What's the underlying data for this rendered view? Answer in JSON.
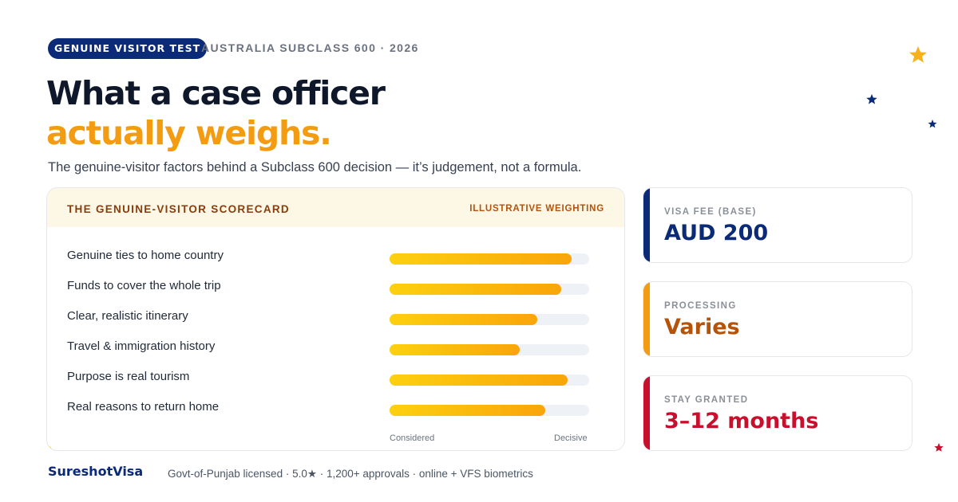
{
  "header": {
    "badge": "GENUINE VISITOR TEST",
    "eyebrow": "AUSTRALIA SUBCLASS 600 · 2026",
    "headline_line1": "What a case officer",
    "headline_line2": "actually weighs.",
    "subtitle": "The genuine-visitor factors behind a Subclass 600 decision — it’s judgement, not a formula."
  },
  "scorecard": {
    "title": "THE GENUINE-VISITOR SCORECARD",
    "tag": "ILLUSTRATIVE WEIGHTING",
    "scale_low": "Considered",
    "scale_high": "Decisive",
    "factors": [
      {
        "label": "Genuine ties to home country",
        "weight": 0.91
      },
      {
        "label": "Funds to cover the whole trip",
        "weight": 0.86
      },
      {
        "label": "Clear, realistic itinerary",
        "weight": 0.74
      },
      {
        "label": "Travel & immigration history",
        "weight": 0.65
      },
      {
        "label": "Purpose is real tourism",
        "weight": 0.89
      },
      {
        "label": "Real reasons to return home",
        "weight": 0.78
      }
    ]
  },
  "stats": [
    {
      "label": "VISA FEE (BASE)",
      "value": "AUD 200",
      "color": "#0b2a78"
    },
    {
      "label": "PROCESSING",
      "value": "Varies",
      "color": "#b45309",
      "rail": "#f39c12"
    },
    {
      "label": "STAY GRANTED",
      "value": "3–12 months",
      "color": "#c8102e"
    }
  ],
  "footer": {
    "brand_part1": "Sureshot",
    "brand_part2": "Visa",
    "note": "Govt-of-Punjab licensed · 5.0★ · 1,200+ approvals · online + VFS biometrics"
  },
  "decor": {
    "star_colors": [
      "#f7b21b",
      "#0b2a78",
      "#0b2a78",
      "#c8102e"
    ],
    "icon": "star-icon"
  }
}
